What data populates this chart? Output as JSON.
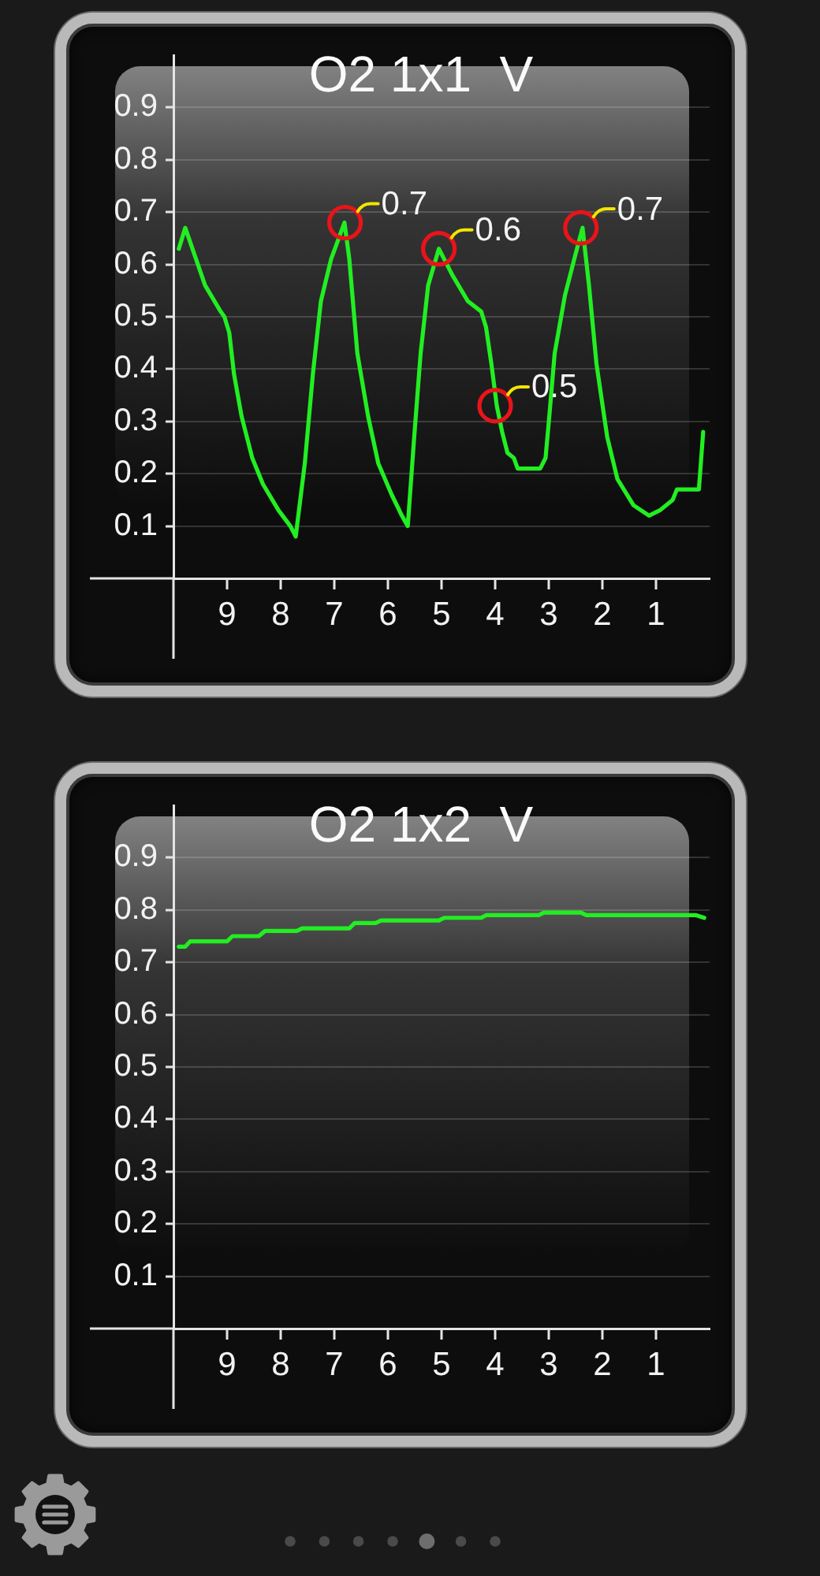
{
  "chart_data": [
    {
      "type": "line",
      "title": "O2 1x1  V",
      "series": [
        {
          "color": "#22ee22",
          "x": [
            9.9,
            9.78,
            9.41,
            9.12,
            9.05,
            8.96,
            8.87,
            8.73,
            8.53,
            8.33,
            8.04,
            7.82,
            7.72,
            7.55,
            7.4,
            7.25,
            7.06,
            6.81,
            6.72,
            6.57,
            6.37,
            6.18,
            5.93,
            5.74,
            5.63,
            5.51,
            5.39,
            5.25,
            5.05,
            4.8,
            4.51,
            4.26,
            4.17,
            4.07,
            3.97,
            3.87,
            3.77,
            3.65,
            3.58,
            3.16,
            3.06,
            2.99,
            2.89,
            2.7,
            2.5,
            2.37,
            2.25,
            2.11,
            1.91,
            1.72,
            1.42,
            1.13,
            0.93,
            0.69,
            0.61,
            0.2,
            0.12
          ],
          "values": [
            0.63,
            0.67,
            0.56,
            0.51,
            0.5,
            0.47,
            0.39,
            0.31,
            0.23,
            0.18,
            0.13,
            0.1,
            0.08,
            0.22,
            0.39,
            0.53,
            0.61,
            0.68,
            0.61,
            0.43,
            0.31,
            0.22,
            0.16,
            0.12,
            0.1,
            0.27,
            0.43,
            0.56,
            0.63,
            0.58,
            0.53,
            0.51,
            0.48,
            0.41,
            0.33,
            0.28,
            0.24,
            0.23,
            0.21,
            0.21,
            0.23,
            0.31,
            0.43,
            0.54,
            0.62,
            0.67,
            0.56,
            0.41,
            0.27,
            0.19,
            0.14,
            0.12,
            0.13,
            0.15,
            0.17,
            0.17,
            0.28
          ]
        }
      ],
      "xlim": [
        10,
        0
      ],
      "xticks": [
        9,
        8,
        7,
        6,
        5,
        4,
        3,
        2,
        1
      ],
      "ylim": [
        0,
        1
      ],
      "yticks": [
        0.1,
        0.2,
        0.3,
        0.4,
        0.5,
        0.6,
        0.7,
        0.8,
        0.9
      ],
      "grid": "y",
      "marker": "none",
      "annotations": [
        {
          "text": "0.7",
          "x": 6.8,
          "y": 0.68
        },
        {
          "text": "0.6",
          "x": 5.05,
          "y": 0.63
        },
        {
          "text": "0.5",
          "x": 4.0,
          "y": 0.33
        },
        {
          "text": "0.7",
          "x": 2.4,
          "y": 0.67
        }
      ]
    },
    {
      "type": "line",
      "title": "O2 1x2  V",
      "series": [
        {
          "color": "#22ee22",
          "x": [
            9.9,
            9.78,
            9.69,
            9.0,
            8.9,
            8.41,
            8.29,
            7.7,
            7.6,
            6.72,
            6.62,
            6.23,
            6.13,
            5.05,
            4.95,
            4.26,
            4.17,
            3.19,
            3.09,
            2.4,
            2.3,
            0.25,
            0.1
          ],
          "values": [
            0.73,
            0.73,
            0.74,
            0.74,
            0.75,
            0.75,
            0.76,
            0.76,
            0.765,
            0.765,
            0.775,
            0.775,
            0.78,
            0.78,
            0.785,
            0.785,
            0.79,
            0.79,
            0.795,
            0.795,
            0.79,
            0.79,
            0.785
          ]
        }
      ],
      "xlim": [
        10,
        0
      ],
      "xticks": [
        9,
        8,
        7,
        6,
        5,
        4,
        3,
        2,
        1
      ],
      "ylim": [
        0,
        1
      ],
      "yticks": [
        0.1,
        0.2,
        0.3,
        0.4,
        0.5,
        0.6,
        0.7,
        0.8,
        0.9
      ],
      "grid": "y",
      "marker": "none"
    }
  ]
}
